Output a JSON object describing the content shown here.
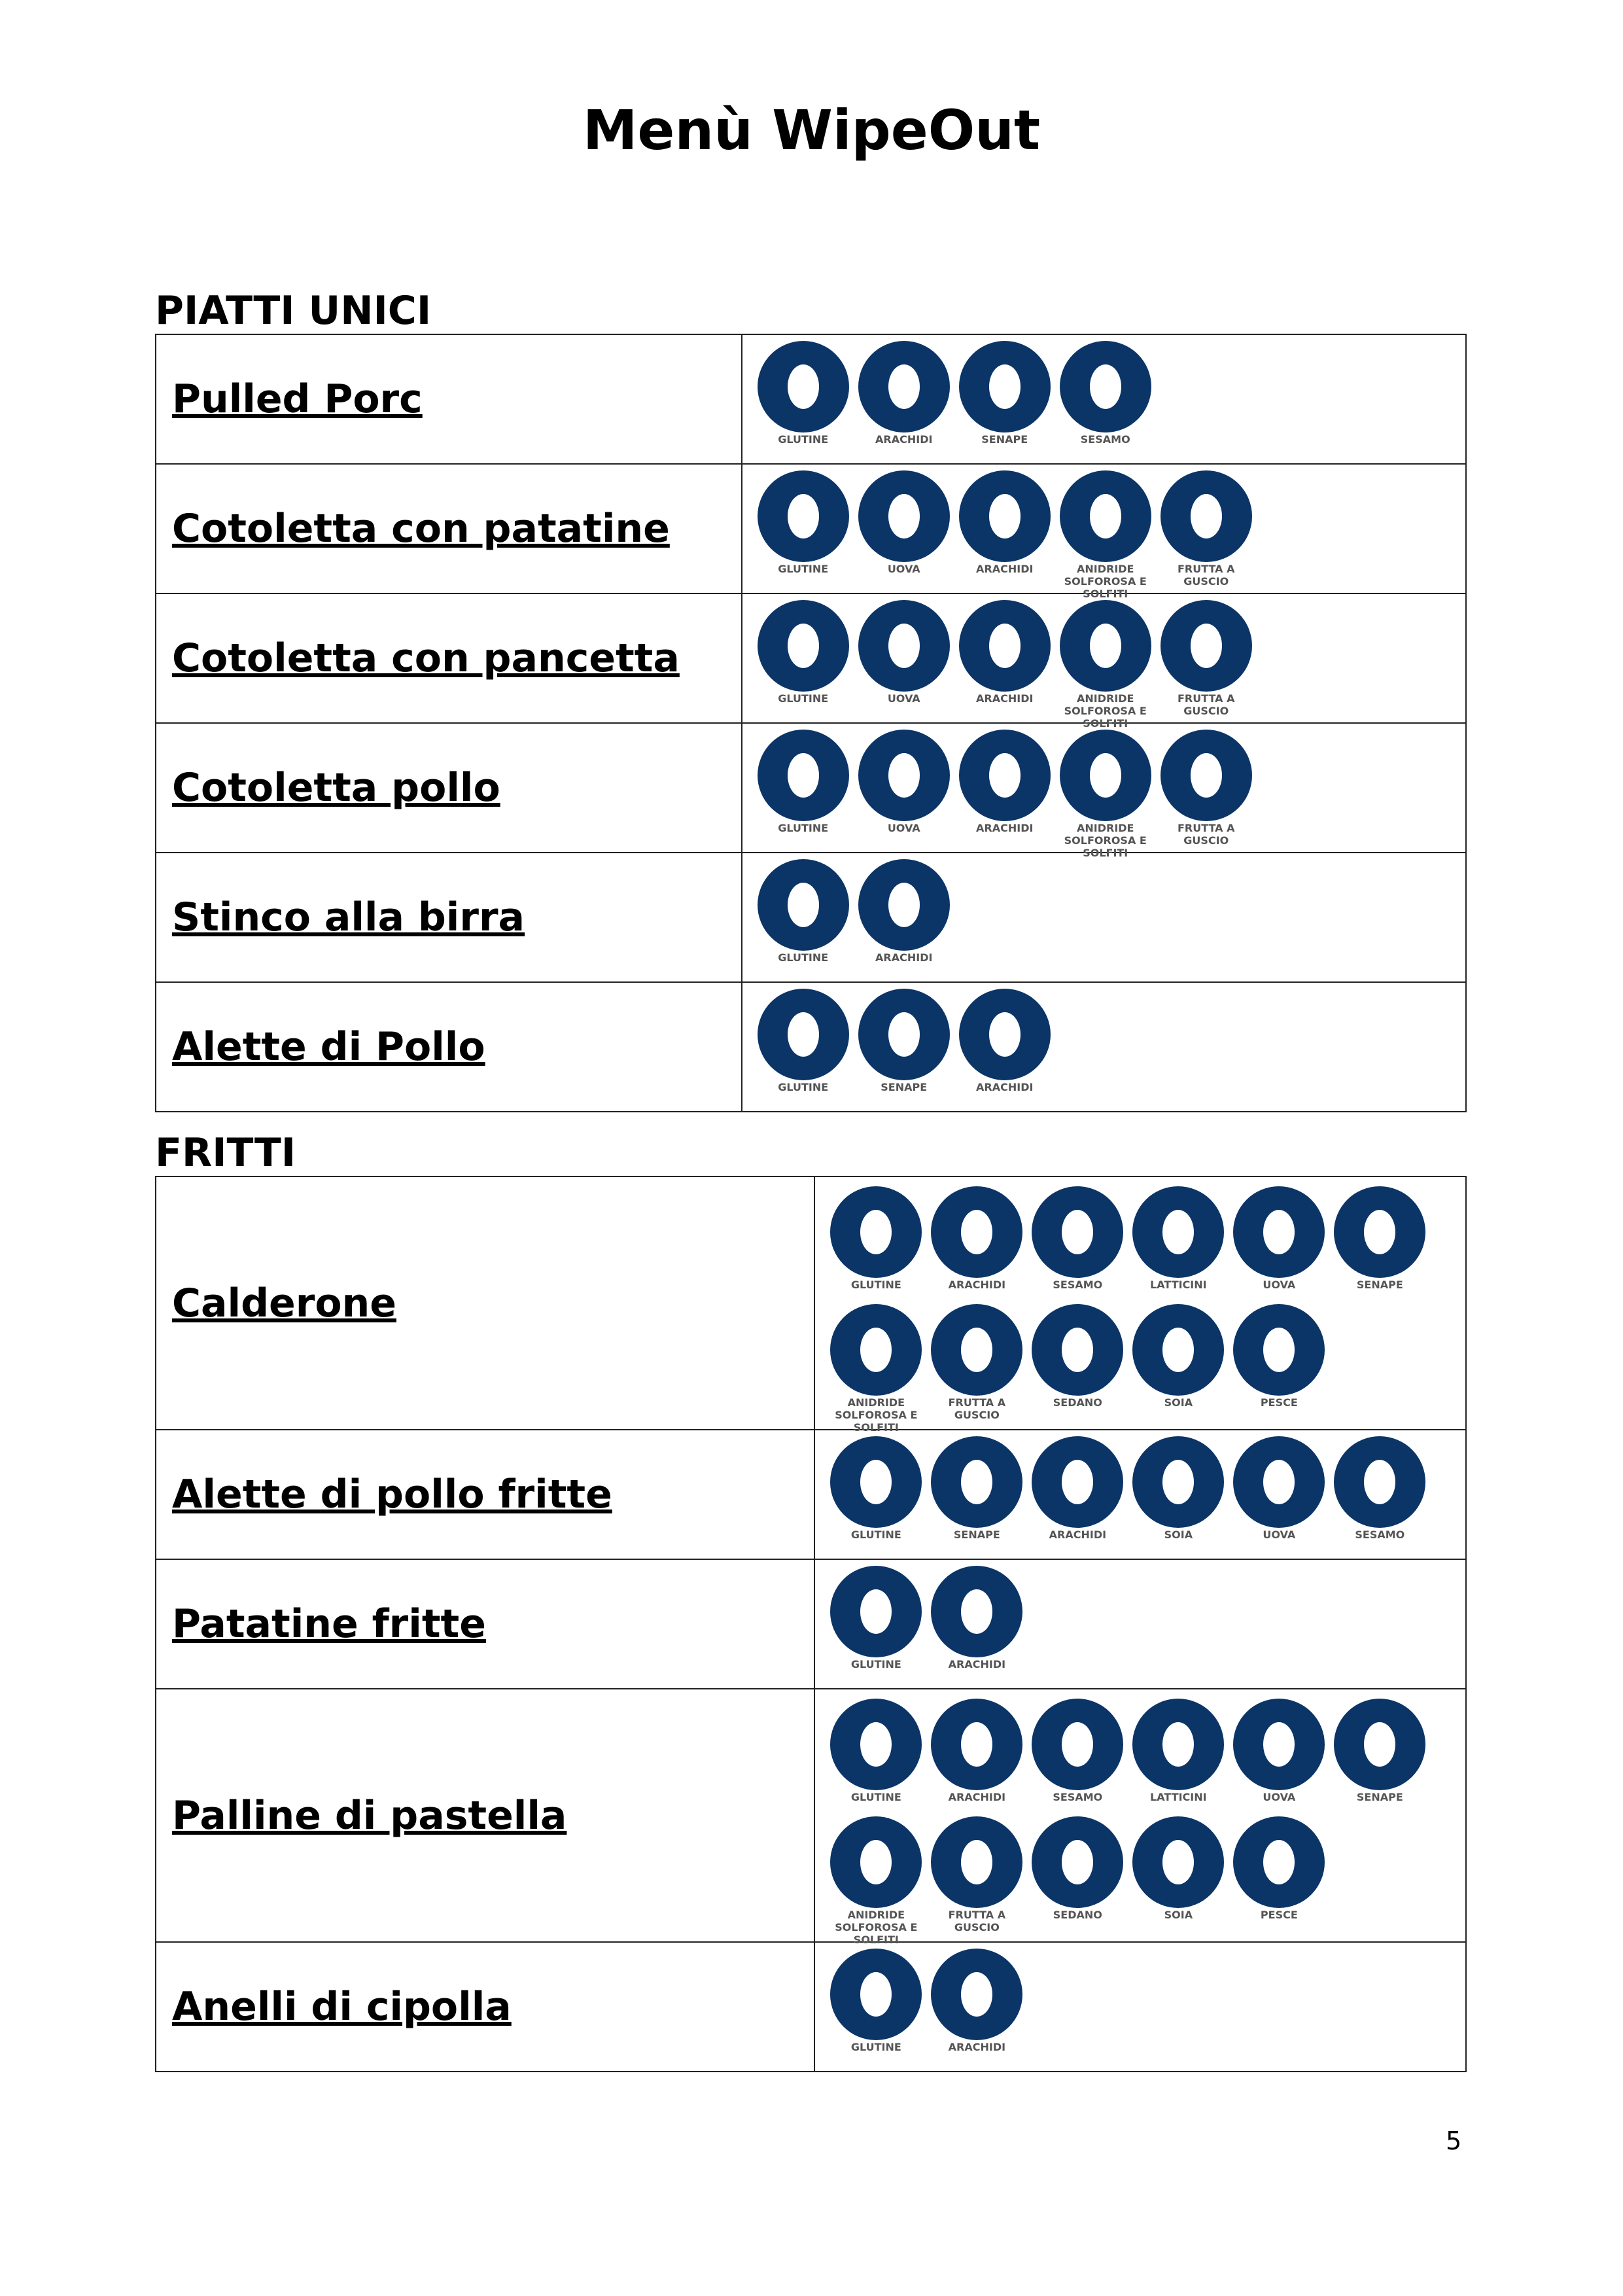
{
  "title": "Menù WipeOut",
  "sections": [
    {
      "heading": "PIATTI UNICI",
      "rows": [
        {
          "dish": "Pulled Porc",
          "allergens": [
            "GLUTINE",
            "ARACHIDI",
            "SENAPE",
            "SESAMO"
          ]
        },
        {
          "dish": "Cotoletta con patatine",
          "allergens": [
            "GLUTINE",
            "UOVA",
            "ARACHIDI",
            "ANIDRIDE SOLFOROSA E SOLFITI",
            "FRUTTA A GUSCIO"
          ]
        },
        {
          "dish": "Cotoletta con pancetta",
          "allergens": [
            "GLUTINE",
            "UOVA",
            "ARACHIDI",
            "ANIDRIDE SOLFOROSA E SOLFITI",
            "FRUTTA A GUSCIO"
          ]
        },
        {
          "dish": "Cotoletta pollo",
          "allergens": [
            "GLUTINE",
            "UOVA",
            "ARACHIDI",
            "ANIDRIDE SOLFOROSA E SOLFITI",
            "FRUTTA A GUSCIO"
          ]
        },
        {
          "dish": "Stinco alla birra",
          "allergens": [
            "GLUTINE",
            "ARACHIDI"
          ]
        },
        {
          "dish": "Alette di Pollo",
          "allergens": [
            "GLUTINE",
            "SENAPE",
            "ARACHIDI"
          ]
        }
      ]
    },
    {
      "heading": "FRITTI",
      "rows": [
        {
          "dish": "Calderone",
          "allergens": [
            "GLUTINE",
            "ARACHIDI",
            "SESAMO",
            "LATTICINI",
            "UOVA",
            "SENAPE",
            "ANIDRIDE SOLFOROSA E SOLFITI",
            "FRUTTA A GUSCIO",
            "SEDANO",
            "SOIA",
            "PESCE"
          ]
        },
        {
          "dish": "Alette di pollo fritte",
          "allergens": [
            "GLUTINE",
            "SENAPE",
            "ARACHIDI",
            "SOIA",
            "UOVA",
            "SESAMO"
          ]
        },
        {
          "dish": "Patatine fritte",
          "allergens": [
            "GLUTINE",
            "ARACHIDI"
          ]
        },
        {
          "dish": "Palline di pastella",
          "allergens": [
            "GLUTINE",
            "ARACHIDI",
            "SESAMO",
            "LATTICINI",
            "UOVA",
            "SENAPE",
            "ANIDRIDE SOLFOROSA E SOLFITI",
            "FRUTTA A GUSCIO",
            "SEDANO",
            "SOIA",
            "PESCE"
          ]
        },
        {
          "dish": "Anelli di cipolla",
          "allergens": [
            "GLUTINE",
            "ARACHIDI"
          ]
        }
      ]
    }
  ],
  "page_number": 5
}
